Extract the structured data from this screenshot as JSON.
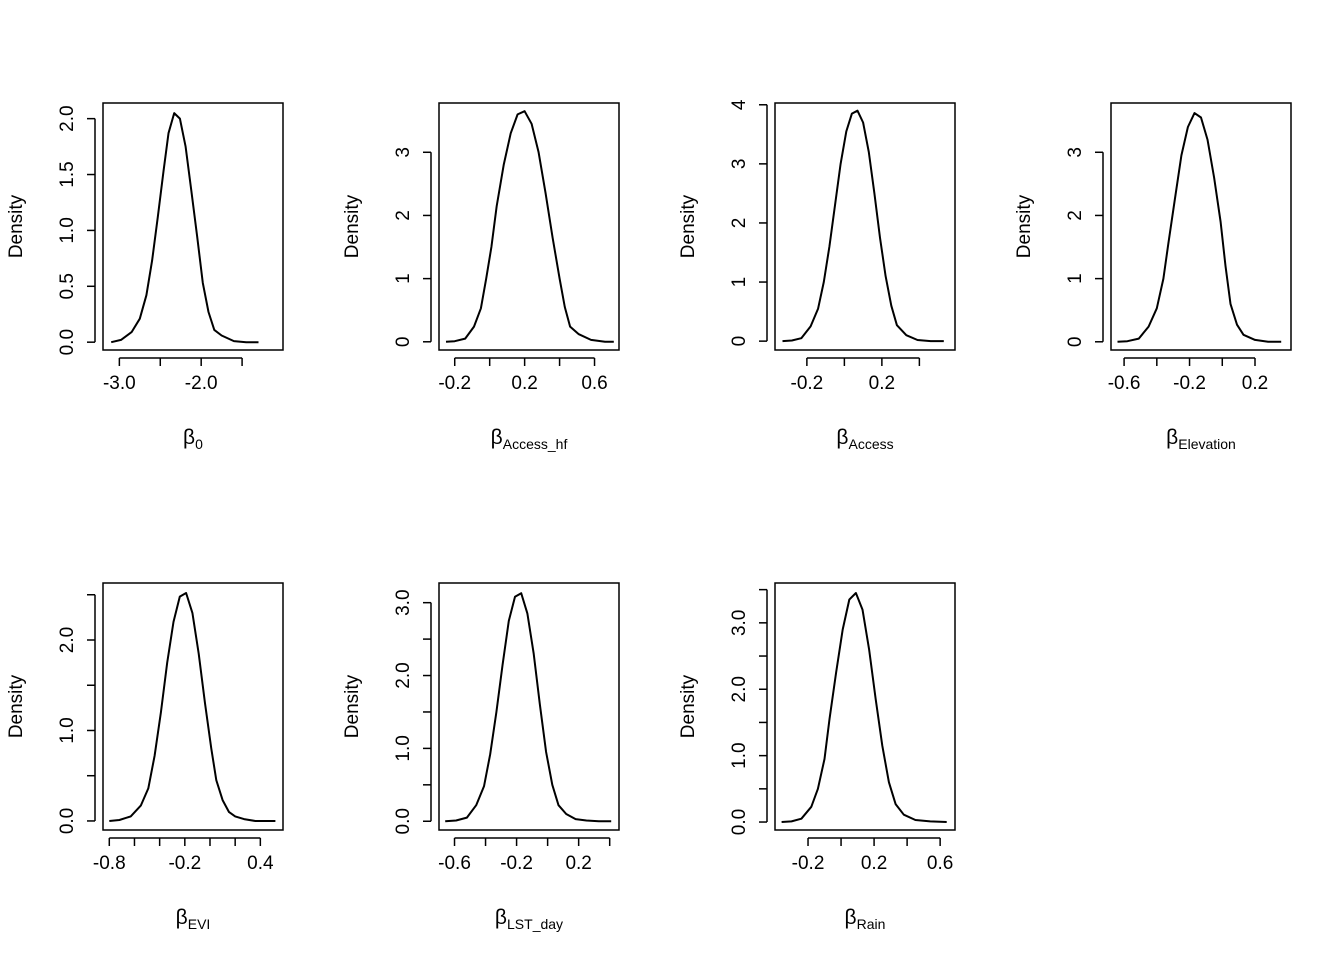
{
  "ylabel": "Density",
  "chart_data": [
    {
      "type": "line",
      "xlabel": {
        "symbol": "β",
        "subscript": "0"
      },
      "ylabel": "Density",
      "xlim": [
        -3.2,
        -1.0
      ],
      "ylim": [
        -0.07,
        2.14
      ],
      "xticks": [
        -3.0,
        -2.5,
        -2.0,
        -1.5
      ],
      "xticklabels": [
        "-3.0",
        "",
        "-2.0",
        ""
      ],
      "yticks": [
        0.0,
        0.5,
        1.0,
        1.5,
        2.0
      ],
      "yticklabels": [
        "0.0",
        "0.5",
        "1.0",
        "1.5",
        "2.0"
      ],
      "series": [
        {
          "x": [
            -3.1,
            -2.98,
            -2.85,
            -2.75,
            -2.67,
            -2.6,
            -2.53,
            -2.46,
            -2.4,
            -2.33,
            -2.26,
            -2.19,
            -2.12,
            -2.05,
            -1.98,
            -1.91,
            -1.84,
            -1.75,
            -1.6,
            -1.45,
            -1.3
          ],
          "y": [
            0.0,
            0.02,
            0.09,
            0.21,
            0.42,
            0.73,
            1.12,
            1.53,
            1.87,
            2.05,
            2.0,
            1.75,
            1.35,
            0.95,
            0.53,
            0.27,
            0.11,
            0.06,
            0.01,
            0.0,
            0.0
          ]
        }
      ]
    },
    {
      "type": "line",
      "xlabel": {
        "symbol": "β",
        "subscript": "Access_hf"
      },
      "ylabel": "Density",
      "xlim": [
        -0.29,
        0.74
      ],
      "ylim": [
        -0.13,
        3.78
      ],
      "xticks": [
        -0.2,
        0.0,
        0.2,
        0.4,
        0.6
      ],
      "xticklabels": [
        "-0.2",
        "",
        "0.2",
        "",
        "0.6"
      ],
      "yticks": [
        0,
        1,
        2,
        3
      ],
      "yticklabels": [
        "0",
        "1",
        "2",
        "3"
      ],
      "series": [
        {
          "x": [
            -0.25,
            -0.2,
            -0.14,
            -0.09,
            -0.05,
            -0.02,
            0.01,
            0.04,
            0.08,
            0.12,
            0.16,
            0.2,
            0.24,
            0.28,
            0.32,
            0.36,
            0.4,
            0.43,
            0.46,
            0.51,
            0.58,
            0.66,
            0.71
          ],
          "y": [
            0.0,
            0.01,
            0.05,
            0.24,
            0.53,
            1.0,
            1.5,
            2.15,
            2.8,
            3.3,
            3.6,
            3.65,
            3.45,
            3.0,
            2.35,
            1.65,
            1.0,
            0.55,
            0.24,
            0.12,
            0.03,
            0.0,
            0.0
          ]
        }
      ]
    },
    {
      "type": "line",
      "xlabel": {
        "symbol": "β",
        "subscript": "Access"
      },
      "ylabel": "Density",
      "xlim": [
        -0.37,
        0.59
      ],
      "ylim": [
        -0.15,
        4.03
      ],
      "xticks": [
        -0.2,
        0.0,
        0.2,
        0.4
      ],
      "xticklabels": [
        "-0.2",
        "",
        "0.2",
        ""
      ],
      "yticks": [
        0,
        1,
        2,
        3,
        4
      ],
      "yticklabels": [
        "0",
        "1",
        "2",
        "3",
        "4"
      ],
      "series": [
        {
          "x": [
            -0.33,
            -0.28,
            -0.23,
            -0.18,
            -0.14,
            -0.11,
            -0.08,
            -0.05,
            -0.02,
            0.01,
            0.04,
            0.07,
            0.1,
            0.13,
            0.16,
            0.19,
            0.22,
            0.25,
            0.28,
            0.33,
            0.39,
            0.46,
            0.53
          ],
          "y": [
            0.0,
            0.01,
            0.05,
            0.25,
            0.55,
            1.0,
            1.6,
            2.3,
            3.0,
            3.55,
            3.85,
            3.9,
            3.7,
            3.2,
            2.5,
            1.75,
            1.1,
            0.6,
            0.27,
            0.1,
            0.02,
            0.0,
            0.0
          ]
        }
      ]
    },
    {
      "type": "line",
      "xlabel": {
        "symbol": "β",
        "subscript": "Elevation"
      },
      "ylabel": "Density",
      "xlim": [
        -0.68,
        0.42
      ],
      "ylim": [
        -0.13,
        3.78
      ],
      "xticks": [
        -0.6,
        -0.4,
        -0.2,
        0.0,
        0.2
      ],
      "xticklabels": [
        "-0.6",
        "",
        "-0.2",
        "",
        "0.2"
      ],
      "yticks": [
        0,
        1,
        2,
        3
      ],
      "yticklabels": [
        "0",
        "1",
        "2",
        "3"
      ],
      "series": [
        {
          "x": [
            -0.64,
            -0.58,
            -0.51,
            -0.45,
            -0.4,
            -0.36,
            -0.33,
            -0.29,
            -0.25,
            -0.21,
            -0.17,
            -0.13,
            -0.09,
            -0.05,
            -0.01,
            0.02,
            0.05,
            0.09,
            0.13,
            0.2,
            0.28,
            0.36
          ],
          "y": [
            0.0,
            0.01,
            0.05,
            0.24,
            0.53,
            1.0,
            1.55,
            2.25,
            2.95,
            3.4,
            3.62,
            3.55,
            3.2,
            2.6,
            1.9,
            1.2,
            0.6,
            0.27,
            0.11,
            0.03,
            0.0,
            0.0
          ]
        }
      ]
    },
    {
      "type": "line",
      "xlabel": {
        "symbol": "β",
        "subscript": "EVI"
      },
      "ylabel": "Density",
      "xlim": [
        -0.85,
        0.58
      ],
      "ylim": [
        -0.1,
        2.63
      ],
      "xticks": [
        -0.8,
        -0.6,
        -0.4,
        -0.2,
        0.0,
        0.2,
        0.4
      ],
      "xticklabels": [
        "-0.8",
        "",
        "",
        "-0.2",
        "",
        "",
        "0.4"
      ],
      "yticks": [
        0.0,
        0.5,
        1.0,
        1.5,
        2.0,
        2.5
      ],
      "yticklabels": [
        "0.0",
        "",
        "1.0",
        "",
        "2.0",
        ""
      ],
      "series": [
        {
          "x": [
            -0.8,
            -0.72,
            -0.63,
            -0.55,
            -0.49,
            -0.44,
            -0.39,
            -0.34,
            -0.29,
            -0.24,
            -0.19,
            -0.14,
            -0.09,
            -0.04,
            0.01,
            0.05,
            0.1,
            0.15,
            0.2,
            0.27,
            0.36,
            0.45,
            0.52
          ],
          "y": [
            0.0,
            0.01,
            0.05,
            0.17,
            0.36,
            0.72,
            1.2,
            1.75,
            2.2,
            2.48,
            2.52,
            2.3,
            1.85,
            1.3,
            0.8,
            0.45,
            0.23,
            0.1,
            0.05,
            0.02,
            0.0,
            0.0,
            0.0
          ]
        }
      ]
    },
    {
      "type": "line",
      "xlabel": {
        "symbol": "β",
        "subscript": "LST_day"
      },
      "ylabel": "Density",
      "xlim": [
        -0.7,
        0.46
      ],
      "ylim": [
        -0.12,
        3.27
      ],
      "xticks": [
        -0.6,
        -0.4,
        -0.2,
        0.0,
        0.2,
        0.4
      ],
      "xticklabels": [
        "-0.6",
        "",
        "-0.2",
        "",
        "0.2",
        ""
      ],
      "yticks": [
        0.0,
        0.5,
        1.0,
        1.5,
        2.0,
        2.5,
        3.0
      ],
      "yticklabels": [
        "0.0",
        "",
        "1.0",
        "",
        "2.0",
        "",
        "3.0"
      ],
      "series": [
        {
          "x": [
            -0.66,
            -0.59,
            -0.52,
            -0.46,
            -0.41,
            -0.37,
            -0.33,
            -0.29,
            -0.25,
            -0.21,
            -0.17,
            -0.13,
            -0.09,
            -0.05,
            -0.01,
            0.03,
            0.07,
            0.12,
            0.18,
            0.25,
            0.33,
            0.41
          ],
          "y": [
            0.0,
            0.01,
            0.05,
            0.22,
            0.48,
            0.92,
            1.5,
            2.15,
            2.75,
            3.08,
            3.13,
            2.85,
            2.3,
            1.6,
            0.95,
            0.5,
            0.22,
            0.1,
            0.03,
            0.01,
            0.0,
            0.0
          ]
        }
      ]
    },
    {
      "type": "line",
      "xlabel": {
        "symbol": "β",
        "subscript": "Rain"
      },
      "ylabel": "Density",
      "xlim": [
        -0.4,
        0.69
      ],
      "ylim": [
        -0.12,
        3.6
      ],
      "xticks": [
        -0.2,
        0.0,
        0.2,
        0.4,
        0.6
      ],
      "xticklabels": [
        "-0.2",
        "",
        "0.2",
        "",
        "0.6"
      ],
      "yticks": [
        0.0,
        0.5,
        1.0,
        1.5,
        2.0,
        2.5,
        3.0,
        3.5
      ],
      "yticklabels": [
        "0.0",
        "",
        "1.0",
        "",
        "2.0",
        "",
        "3.0",
        ""
      ],
      "series": [
        {
          "x": [
            -0.36,
            -0.3,
            -0.24,
            -0.18,
            -0.14,
            -0.1,
            -0.07,
            -0.03,
            0.01,
            0.05,
            0.09,
            0.13,
            0.17,
            0.21,
            0.25,
            0.29,
            0.33,
            0.38,
            0.45,
            0.54,
            0.64
          ],
          "y": [
            0.0,
            0.01,
            0.05,
            0.23,
            0.5,
            0.95,
            1.55,
            2.25,
            2.9,
            3.35,
            3.45,
            3.2,
            2.6,
            1.85,
            1.15,
            0.6,
            0.27,
            0.11,
            0.03,
            0.01,
            0.0
          ]
        }
      ]
    }
  ]
}
